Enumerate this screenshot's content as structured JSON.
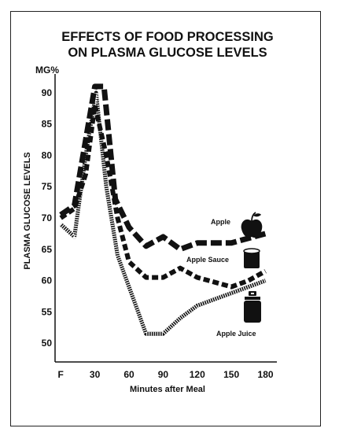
{
  "chart_data": {
    "type": "line",
    "title_lines": [
      "EFFECTS OF FOOD PROCESSING",
      "ON PLASMA GLUCOSE LEVELS"
    ],
    "ylabel": "PLASMA GLUCOSE LEVELS",
    "yunit": "MG%",
    "xlabel": "Minutes after Meal",
    "x_tick_labels": [
      "F",
      "30",
      "60",
      "90",
      "120",
      "150",
      "180"
    ],
    "y_tick_labels": [
      "90",
      "85",
      "80",
      "75",
      "70",
      "65",
      "60",
      "55",
      "50"
    ],
    "xlim": [
      -5,
      190
    ],
    "ylim": [
      47,
      93
    ],
    "series": [
      {
        "name": "Apple",
        "style": "thick-dash",
        "x": [
          0,
          12,
          30,
          38,
          48,
          60,
          75,
          90,
          105,
          120,
          150,
          160,
          180
        ],
        "y": [
          70.5,
          72,
          91,
          91,
          73,
          68.5,
          65.5,
          67,
          65,
          66,
          66,
          66.5,
          67.5
        ]
      },
      {
        "name": "Apple Sauce",
        "style": "dash",
        "x": [
          0,
          12,
          22,
          30,
          40,
          50,
          60,
          75,
          90,
          105,
          120,
          150,
          165,
          180
        ],
        "y": [
          70,
          71.5,
          77,
          88,
          80,
          70,
          63,
          60.5,
          60.5,
          62,
          60.5,
          59,
          60,
          61.5
        ]
      },
      {
        "name": "Apple Juice",
        "style": "hatched",
        "x": [
          0,
          12,
          22,
          31,
          40,
          50,
          60,
          75,
          90,
          105,
          120,
          150,
          180
        ],
        "y": [
          69,
          67,
          80,
          90,
          75,
          64,
          59,
          51.5,
          51.5,
          54,
          56,
          58,
          60
        ]
      }
    ],
    "grid": false
  }
}
